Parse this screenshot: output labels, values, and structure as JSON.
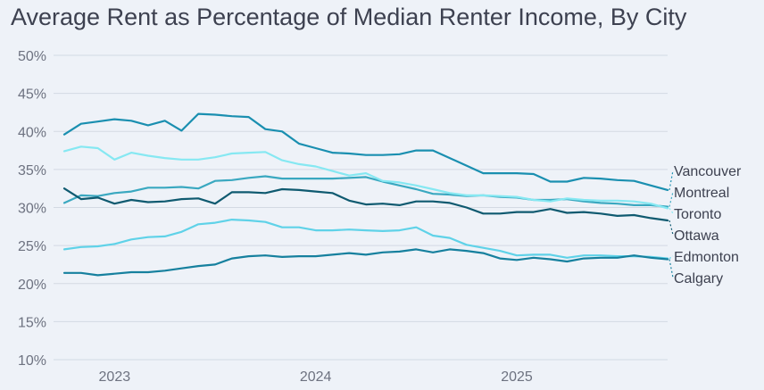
{
  "chart_data": {
    "type": "line",
    "title": "Average Rent as Percentage of Median Renter Income, By City",
    "xlabel": "",
    "ylabel": "",
    "x_range": [
      "2022-10",
      "2025-10"
    ],
    "x_ticks": [
      {
        "date": "2023-01",
        "label": "2023"
      },
      {
        "date": "2024-01",
        "label": "2024"
      },
      {
        "date": "2025-01",
        "label": "2025"
      }
    ],
    "ylim": [
      10,
      50
    ],
    "y_ticks": [
      "10%",
      "15%",
      "20%",
      "25%",
      "30%",
      "35%",
      "40%",
      "45%",
      "50%"
    ],
    "y_tick_values": [
      10,
      15,
      20,
      25,
      30,
      35,
      40,
      45,
      50
    ],
    "grid": "horizontal",
    "legend": "direct labels at right end of lines",
    "x": [
      "2022-10",
      "2022-11",
      "2022-12",
      "2023-01",
      "2023-02",
      "2023-03",
      "2023-04",
      "2023-05",
      "2023-06",
      "2023-07",
      "2023-08",
      "2023-09",
      "2023-10",
      "2023-11",
      "2023-12",
      "2024-01",
      "2024-02",
      "2024-03",
      "2024-04",
      "2024-05",
      "2024-06",
      "2024-07",
      "2024-08",
      "2024-09",
      "2024-10",
      "2024-11",
      "2024-12",
      "2025-01",
      "2025-02",
      "2025-03",
      "2025-04",
      "2025-05",
      "2025-06",
      "2025-07",
      "2025-08",
      "2025-09",
      "2025-10"
    ],
    "series": [
      {
        "name": "Vancouver",
        "color": "#1a8fb0",
        "values": [
          39.6,
          41.0,
          41.3,
          41.6,
          41.4,
          40.8,
          41.4,
          40.1,
          42.3,
          42.2,
          42.0,
          41.9,
          40.3,
          40.0,
          38.4,
          37.8,
          37.2,
          37.1,
          36.9,
          36.9,
          37.0,
          37.5,
          37.5,
          36.5,
          35.5,
          34.5,
          34.5,
          34.5,
          34.4,
          33.4,
          33.4,
          33.9,
          33.8,
          33.6,
          33.5,
          32.9,
          32.3
        ]
      },
      {
        "name": "Montreal",
        "color": "#3aa8c0",
        "values": [
          30.6,
          31.6,
          31.5,
          31.9,
          32.1,
          32.6,
          32.6,
          32.7,
          32.5,
          33.5,
          33.6,
          33.9,
          34.1,
          33.8,
          33.8,
          33.8,
          33.8,
          33.9,
          34.0,
          33.4,
          32.9,
          32.4,
          31.8,
          31.7,
          31.5,
          31.6,
          31.4,
          31.3,
          31.0,
          31.0,
          31.1,
          30.8,
          30.6,
          30.5,
          30.3,
          30.3,
          30.1
        ]
      },
      {
        "name": "Toronto",
        "color": "#86e8f2",
        "values": [
          37.4,
          38.0,
          37.8,
          36.3,
          37.2,
          36.8,
          36.5,
          36.3,
          36.3,
          36.6,
          37.1,
          37.2,
          37.3,
          36.2,
          35.7,
          35.4,
          34.8,
          34.2,
          34.5,
          33.5,
          33.3,
          32.9,
          32.4,
          31.9,
          31.6,
          31.6,
          31.5,
          31.4,
          31.0,
          30.8,
          31.2,
          31.0,
          30.9,
          30.9,
          30.8,
          30.5,
          29.9
        ]
      },
      {
        "name": "Ottawa",
        "color": "#0f5a70",
        "values": [
          32.5,
          31.1,
          31.3,
          30.5,
          31.0,
          30.7,
          30.8,
          31.1,
          31.2,
          30.5,
          32.0,
          32.0,
          31.9,
          32.4,
          32.3,
          32.1,
          31.9,
          30.9,
          30.4,
          30.5,
          30.3,
          30.8,
          30.8,
          30.6,
          30.0,
          29.2,
          29.2,
          29.4,
          29.4,
          29.8,
          29.3,
          29.4,
          29.2,
          28.9,
          29.0,
          28.6,
          28.3
        ]
      },
      {
        "name": "Edmonton",
        "color": "#5fd2e8",
        "values": [
          24.5,
          24.8,
          24.9,
          25.2,
          25.8,
          26.1,
          26.2,
          26.8,
          27.8,
          28.0,
          28.4,
          28.3,
          28.1,
          27.4,
          27.4,
          27.0,
          27.0,
          27.1,
          27.0,
          26.9,
          27.0,
          27.4,
          26.3,
          26.0,
          25.1,
          24.7,
          24.3,
          23.7,
          23.8,
          23.8,
          23.4,
          23.7,
          23.7,
          23.6,
          23.6,
          23.5,
          23.3
        ]
      },
      {
        "name": "Calgary",
        "color": "#16809e",
        "values": [
          21.4,
          21.4,
          21.1,
          21.3,
          21.5,
          21.5,
          21.7,
          22.0,
          22.3,
          22.5,
          23.3,
          23.6,
          23.7,
          23.5,
          23.6,
          23.6,
          23.8,
          24.0,
          23.8,
          24.1,
          24.2,
          24.5,
          24.1,
          24.5,
          24.3,
          24.0,
          23.3,
          23.1,
          23.4,
          23.2,
          22.9,
          23.3,
          23.4,
          23.4,
          23.7,
          23.4,
          23.2
        ]
      }
    ]
  }
}
